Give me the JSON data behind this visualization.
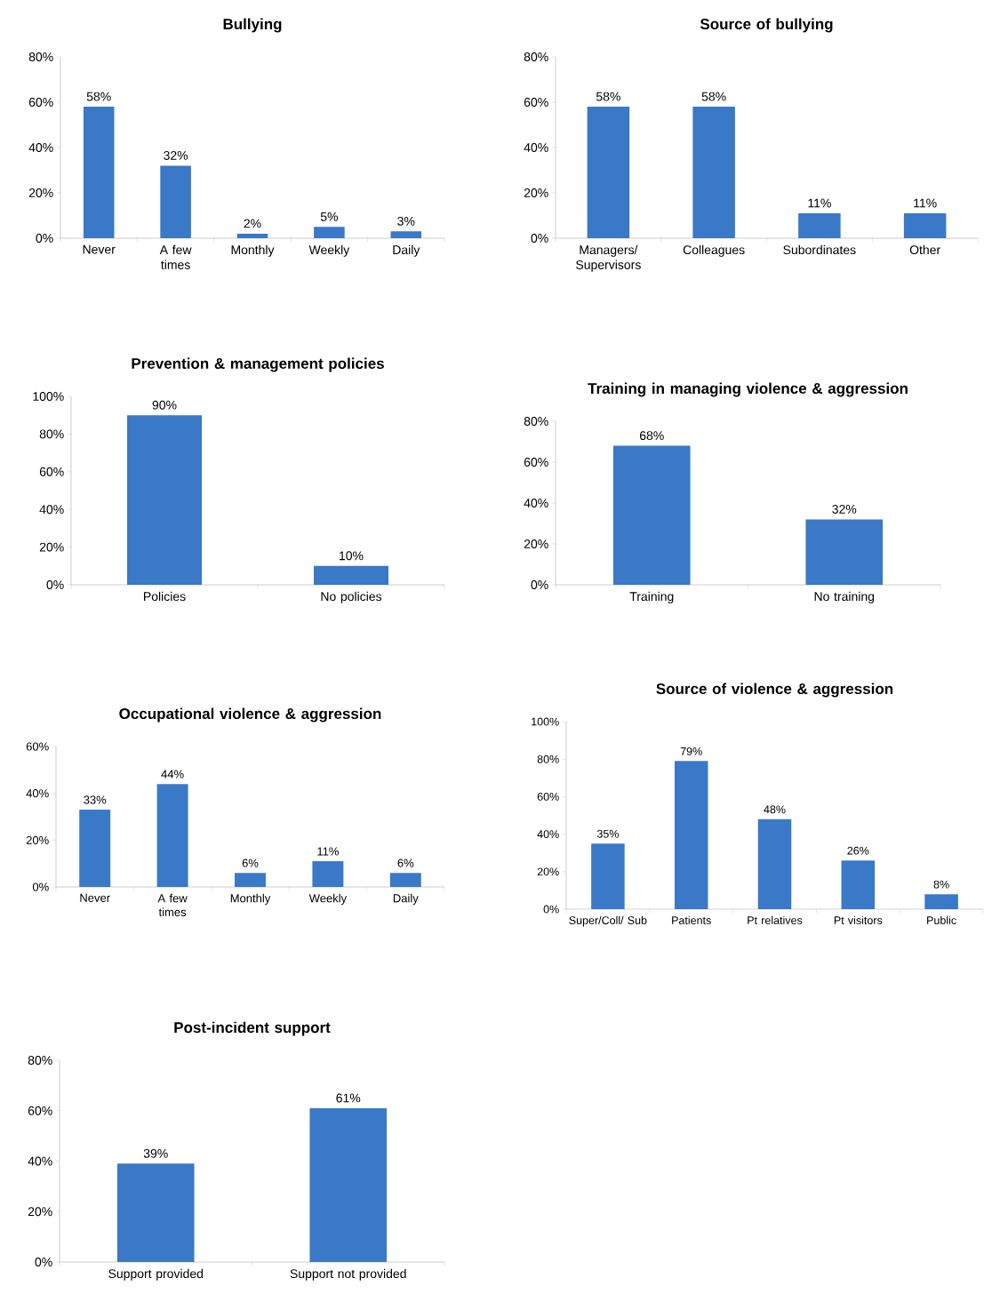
{
  "chart_data": [
    {
      "type": "bar",
      "title": "Bullying",
      "categories": [
        "Never",
        "A few times",
        "Monthly",
        "Weekly",
        "Daily"
      ],
      "values": [
        58,
        32,
        2,
        5,
        3
      ],
      "value_labels": [
        "58%",
        "32%",
        "2%",
        "5%",
        "3%"
      ],
      "color": "#3a78c8",
      "ylim": [
        0,
        80
      ],
      "yticks": [
        {
          "value": 0,
          "label": "0%"
        },
        {
          "value": 20,
          "label": "20%"
        },
        {
          "value": 40,
          "label": "40%"
        },
        {
          "value": 60,
          "label": "60%"
        },
        {
          "value": 80,
          "label": "80%"
        }
      ]
    },
    {
      "type": "bar",
      "title": "Source of bullying",
      "categories": [
        "Managers/ Supervisors",
        "Colleagues",
        "Subordinates",
        "Other"
      ],
      "values": [
        58,
        58,
        11,
        11
      ],
      "value_labels": [
        "58%",
        "58%",
        "11%",
        "11%"
      ],
      "color": "#3a78c8",
      "ylim": [
        0,
        80
      ],
      "yticks": [
        {
          "value": 0,
          "label": "0%"
        },
        {
          "value": 20,
          "label": "20%"
        },
        {
          "value": 40,
          "label": "40%"
        },
        {
          "value": 60,
          "label": "60%"
        },
        {
          "value": 80,
          "label": "80%"
        }
      ]
    },
    {
      "type": "bar",
      "title": "Prevention & management policies",
      "categories": [
        "Policies",
        "No policies"
      ],
      "values": [
        90,
        10
      ],
      "value_labels": [
        "90%",
        "10%"
      ],
      "color": "#3a78c8",
      "ylim": [
        0,
        100
      ],
      "yticks": [
        {
          "value": 0,
          "label": "0%"
        },
        {
          "value": 20,
          "label": "20%"
        },
        {
          "value": 40,
          "label": "40%"
        },
        {
          "value": 60,
          "label": "60%"
        },
        {
          "value": 80,
          "label": "80%"
        },
        {
          "value": 100,
          "label": "100%"
        }
      ]
    },
    {
      "type": "bar",
      "title": "Training in managing violence & aggression",
      "categories": [
        "Training",
        "No training"
      ],
      "values": [
        68,
        32
      ],
      "value_labels": [
        "68%",
        "32%"
      ],
      "color": "#3a78c8",
      "ylim": [
        0,
        80
      ],
      "yticks": [
        {
          "value": 0,
          "label": "0%"
        },
        {
          "value": 20,
          "label": "20%"
        },
        {
          "value": 40,
          "label": "40%"
        },
        {
          "value": 60,
          "label": "60%"
        },
        {
          "value": 80,
          "label": "80%"
        }
      ]
    },
    {
      "type": "bar",
      "title": "Occupational violence & aggression",
      "categories": [
        "Never",
        "A few times",
        "Monthly",
        "Weekly",
        "Daily"
      ],
      "values": [
        33,
        44,
        6,
        11,
        6
      ],
      "value_labels": [
        "33%",
        "44%",
        "6%",
        "11%",
        "6%"
      ],
      "color": "#3a78c8",
      "ylim": [
        0,
        60
      ],
      "yticks": [
        {
          "value": 0,
          "label": "0%"
        },
        {
          "value": 20,
          "label": "20%"
        },
        {
          "value": 40,
          "label": "40%"
        },
        {
          "value": 60,
          "label": "60%"
        }
      ]
    },
    {
      "type": "bar",
      "title": "Source of violence & aggression",
      "categories": [
        "Super/Coll/ Sub",
        "Patients",
        "Pt relatives",
        "Pt visitors",
        "Public"
      ],
      "values": [
        35,
        79,
        48,
        26,
        8
      ],
      "value_labels": [
        "35%",
        "79%",
        "48%",
        "26%",
        "8%"
      ],
      "color": "#3a78c8",
      "ylim": [
        0,
        100
      ],
      "yticks": [
        {
          "value": 0,
          "label": "0%"
        },
        {
          "value": 20,
          "label": "20%"
        },
        {
          "value": 40,
          "label": "40%"
        },
        {
          "value": 60,
          "label": "60%"
        },
        {
          "value": 80,
          "label": "80%"
        },
        {
          "value": 100,
          "label": "100%"
        }
      ]
    },
    {
      "type": "bar",
      "title": "Post-incident support",
      "categories": [
        "Support provided",
        "Support not provided"
      ],
      "values": [
        39,
        61
      ],
      "value_labels": [
        "39%",
        "61%"
      ],
      "color": "#3a78c8",
      "ylim": [
        0,
        80
      ],
      "yticks": [
        {
          "value": 0,
          "label": "0%"
        },
        {
          "value": 20,
          "label": "20%"
        },
        {
          "value": 40,
          "label": "40%"
        },
        {
          "value": 60,
          "label": "60%"
        },
        {
          "value": 80,
          "label": "80%"
        }
      ]
    }
  ]
}
